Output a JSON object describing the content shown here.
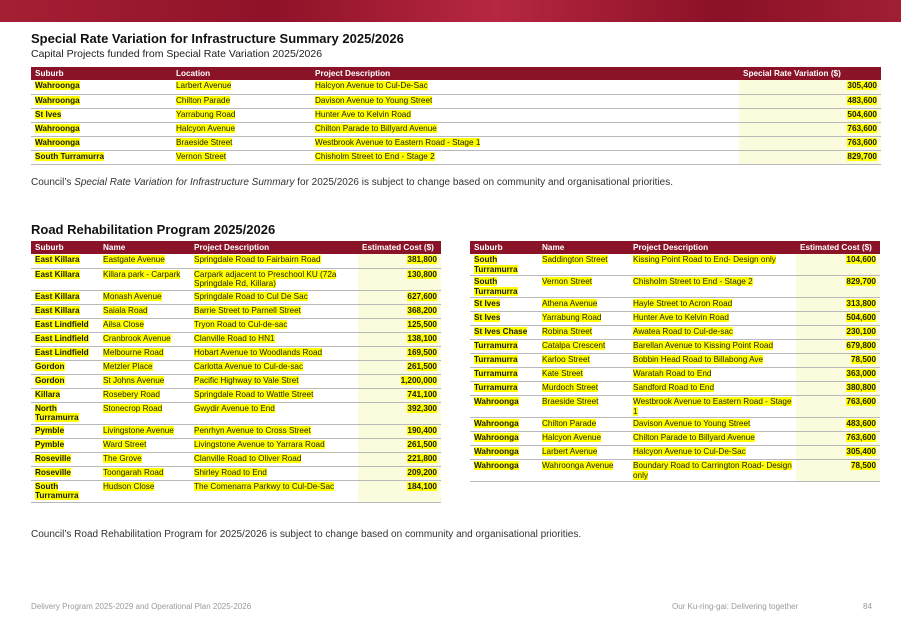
{
  "srv": {
    "title": "Special Rate Variation for Infrastructure Summary 2025/2026",
    "subtitle": "Capital Projects funded from Special Rate Variation 2025/2026",
    "headers": [
      "Suburb",
      "Location",
      "Project Description",
      "Special Rate Variation ($)"
    ],
    "rows": [
      [
        "Wahroonga",
        "Larbert Avenue",
        "Halcyon Avenue to Cul-De-Sac",
        "305,400"
      ],
      [
        "Wahroonga",
        "Chilton Parade",
        "Davison Avenue to Young Street",
        "483,600"
      ],
      [
        "St Ives",
        "Yarrabung Road",
        "Hunter Ave to Kelvin Road",
        "504,600"
      ],
      [
        "Wahroonga",
        "Halcyon Avenue",
        "Chilton Parade to Billyard Avenue",
        "763,600"
      ],
      [
        "Wahroonga",
        "Braeside Street",
        "Westbrook Avenue to Eastern Road - Stage 1",
        "763,600"
      ],
      [
        "South Turramurra",
        "Vernon Street",
        "Chisholm Street to End - Stage 2",
        "829,700"
      ]
    ],
    "note_pre": "Council’s ",
    "note_em": "Special Rate Variation for Infrastructure Summary",
    "note_post": " for 2025/2026 is subject to change based on community and organisational priorities."
  },
  "rrp": {
    "title": "Road Rehabilitation Program 2025/2026",
    "headers": [
      "Suburb",
      "Name",
      "Project Description",
      "Estimated Cost ($)"
    ],
    "left_rows": [
      [
        "East Killara",
        "Eastgate Avenue",
        "Springdale Road to Fairbairn Road",
        "381,800"
      ],
      [
        "East Killara",
        "Killara park - Carpark",
        "Carpark adjacent to  Preschool KU (72a Springdale Rd, Killara)",
        "130,800"
      ],
      [
        "East Killara",
        "Monash Avenue",
        "Springdale Road to Cul De Sac",
        "627,600"
      ],
      [
        "East Killara",
        "Saiala Road",
        "Barrie Street  to Parnell Street",
        "368,200"
      ],
      [
        "East Lindfield",
        "Ailsa Close",
        "Tryon Road to Cul-de-sac",
        "125,500"
      ],
      [
        "East Lindfield",
        "Cranbrook Avenue",
        "Clanville Road to HN1",
        "138,100"
      ],
      [
        "East Lindfield",
        "Melbourne Road",
        "Hobart Avenue to Woodlands Road",
        "169,500"
      ],
      [
        "Gordon",
        "Metzler Place",
        "Carlotta Avenue to Cul-de-sac",
        "261,500"
      ],
      [
        "Gordon",
        "St Johns Avenue",
        "Pacific Highway to Vale Stret",
        "1,200,000"
      ],
      [
        "Killara",
        "Rosebery Road",
        "Springdale Road to Wattle Street",
        "741,100"
      ],
      [
        "North Turramurra",
        "Stonecrop Road",
        "Gwydir Avenue to End",
        "392,300"
      ],
      [
        "Pymble",
        "Livingstone  Avenue",
        "Penrhyn Avenue to Cross Street",
        "190,400"
      ],
      [
        "Pymble",
        "Ward Street",
        "Livingstone Avenue to Yarrara Road",
        "261,500"
      ],
      [
        "Roseville",
        "The Grove",
        "Clanville Road to Oliver Road",
        "221,800"
      ],
      [
        "Roseville",
        "Toongarah Road",
        "Shirley Road to End",
        "209,200"
      ],
      [
        "South Turramurra",
        "Hudson Close",
        "The Comenarra Parkwy to Cul-De-Sac",
        "184,100"
      ]
    ],
    "right_rows": [
      [
        "South Turramurra",
        "Saddington Street",
        "Kissing Point Road to End- Design only",
        "104,600"
      ],
      [
        "South Turramurra",
        "Vernon Street",
        "Chisholm Street to End - Stage 2",
        "829,700"
      ],
      [
        "St Ives",
        "Athena Avenue",
        "Hayle Street to Acron Road",
        "313,800"
      ],
      [
        "St Ives",
        "Yarrabung Road",
        "Hunter Ave to Kelvin Road",
        "504,600"
      ],
      [
        "St Ives Chase",
        "Robina Street",
        "Awatea Road to Cul-de-sac",
        "230,100"
      ],
      [
        "Turramurra",
        "Catalpa Crescent",
        "Barellan Avenue to Kissing Point Road",
        "679,800"
      ],
      [
        "Turramurra",
        "Karloo Street",
        "Bobbin Head Road to Billabong Ave",
        "78,500"
      ],
      [
        "Turramurra",
        "Kate Street",
        "Waratah Road to End",
        "363,000"
      ],
      [
        "Turramurra",
        "Murdoch Street",
        "Sandford Road to End",
        "380,800"
      ],
      [
        "Wahroonga",
        "Braeside Street",
        "Westbrook Avenue to Eastern Road - Stage 1",
        "763,600"
      ],
      [
        "Wahroonga",
        "Chilton Parade",
        "Davison Avenue to Young Street",
        "483,600"
      ],
      [
        "Wahroonga",
        "Halcyon Avenue",
        "Chilton Parade to Billyard Avenue",
        "763,600"
      ],
      [
        "Wahroonga",
        "Larbert Avenue",
        "Halcyon Avenue to Cul-De-Sac",
        "305,400"
      ],
      [
        "Wahroonga",
        "Wahroonga Avenue",
        "Boundary Road to Carrington Road- Design only",
        "78,500"
      ]
    ],
    "note": "Council’s Road Rehabilitation Program for 2025/2026 is subject to change based on community and organisational priorities."
  },
  "footer": {
    "left": "Delivery Program 2025-2029 and Operational Plan 2025-2026",
    "right": "Our Ku-ring-gai: Delivering together",
    "page": "84"
  }
}
